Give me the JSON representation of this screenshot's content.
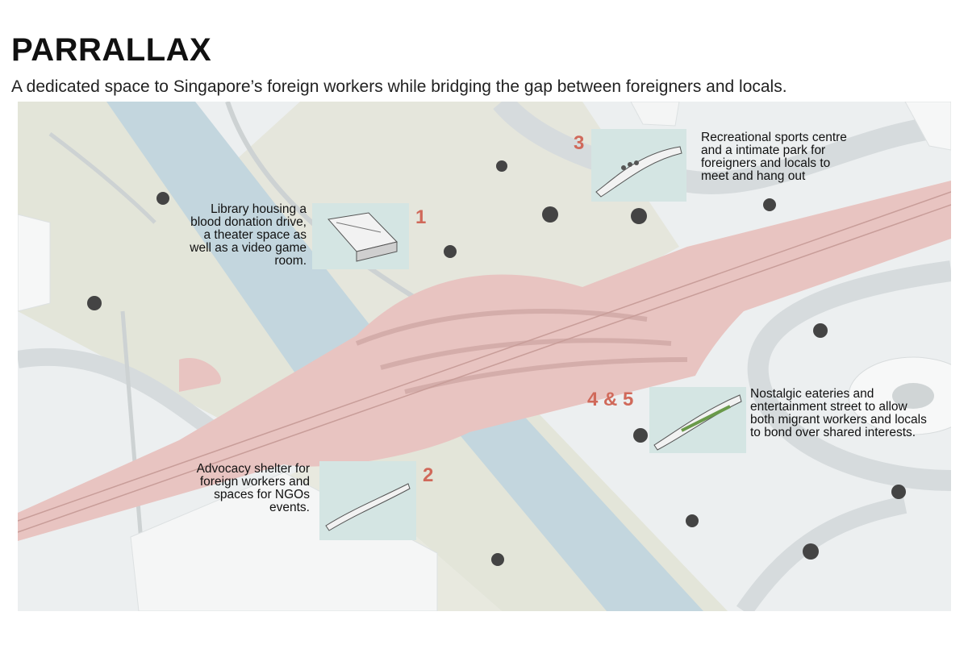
{
  "title": "PARRALLAX",
  "subtitle": "A dedicated space to Singapore’s foreign workers while bridging the gap between foreigners and locals.",
  "annotations": [
    {
      "number": "1",
      "text": "Library housing a blood donation drive, a theater space as well as a video game room."
    },
    {
      "number": "2",
      "text": "Advocacy shelter for foreign workers and spaces for NGOs events."
    },
    {
      "number": "3",
      "text": "Recreational sports centre and a intimate park for foreigners and locals to meet and hang out"
    },
    {
      "number": "4 & 5",
      "text": "Nostalgic eateries and entertainment street to allow both migrant workers and locals to bond over shared interests."
    }
  ],
  "colors": {
    "bridge": "#e8c4c1",
    "river": "#c3d6de",
    "park": "#e3e5d9",
    "ground": "#eceff0",
    "card": "#d4e5e3",
    "number": "#d0695a"
  }
}
